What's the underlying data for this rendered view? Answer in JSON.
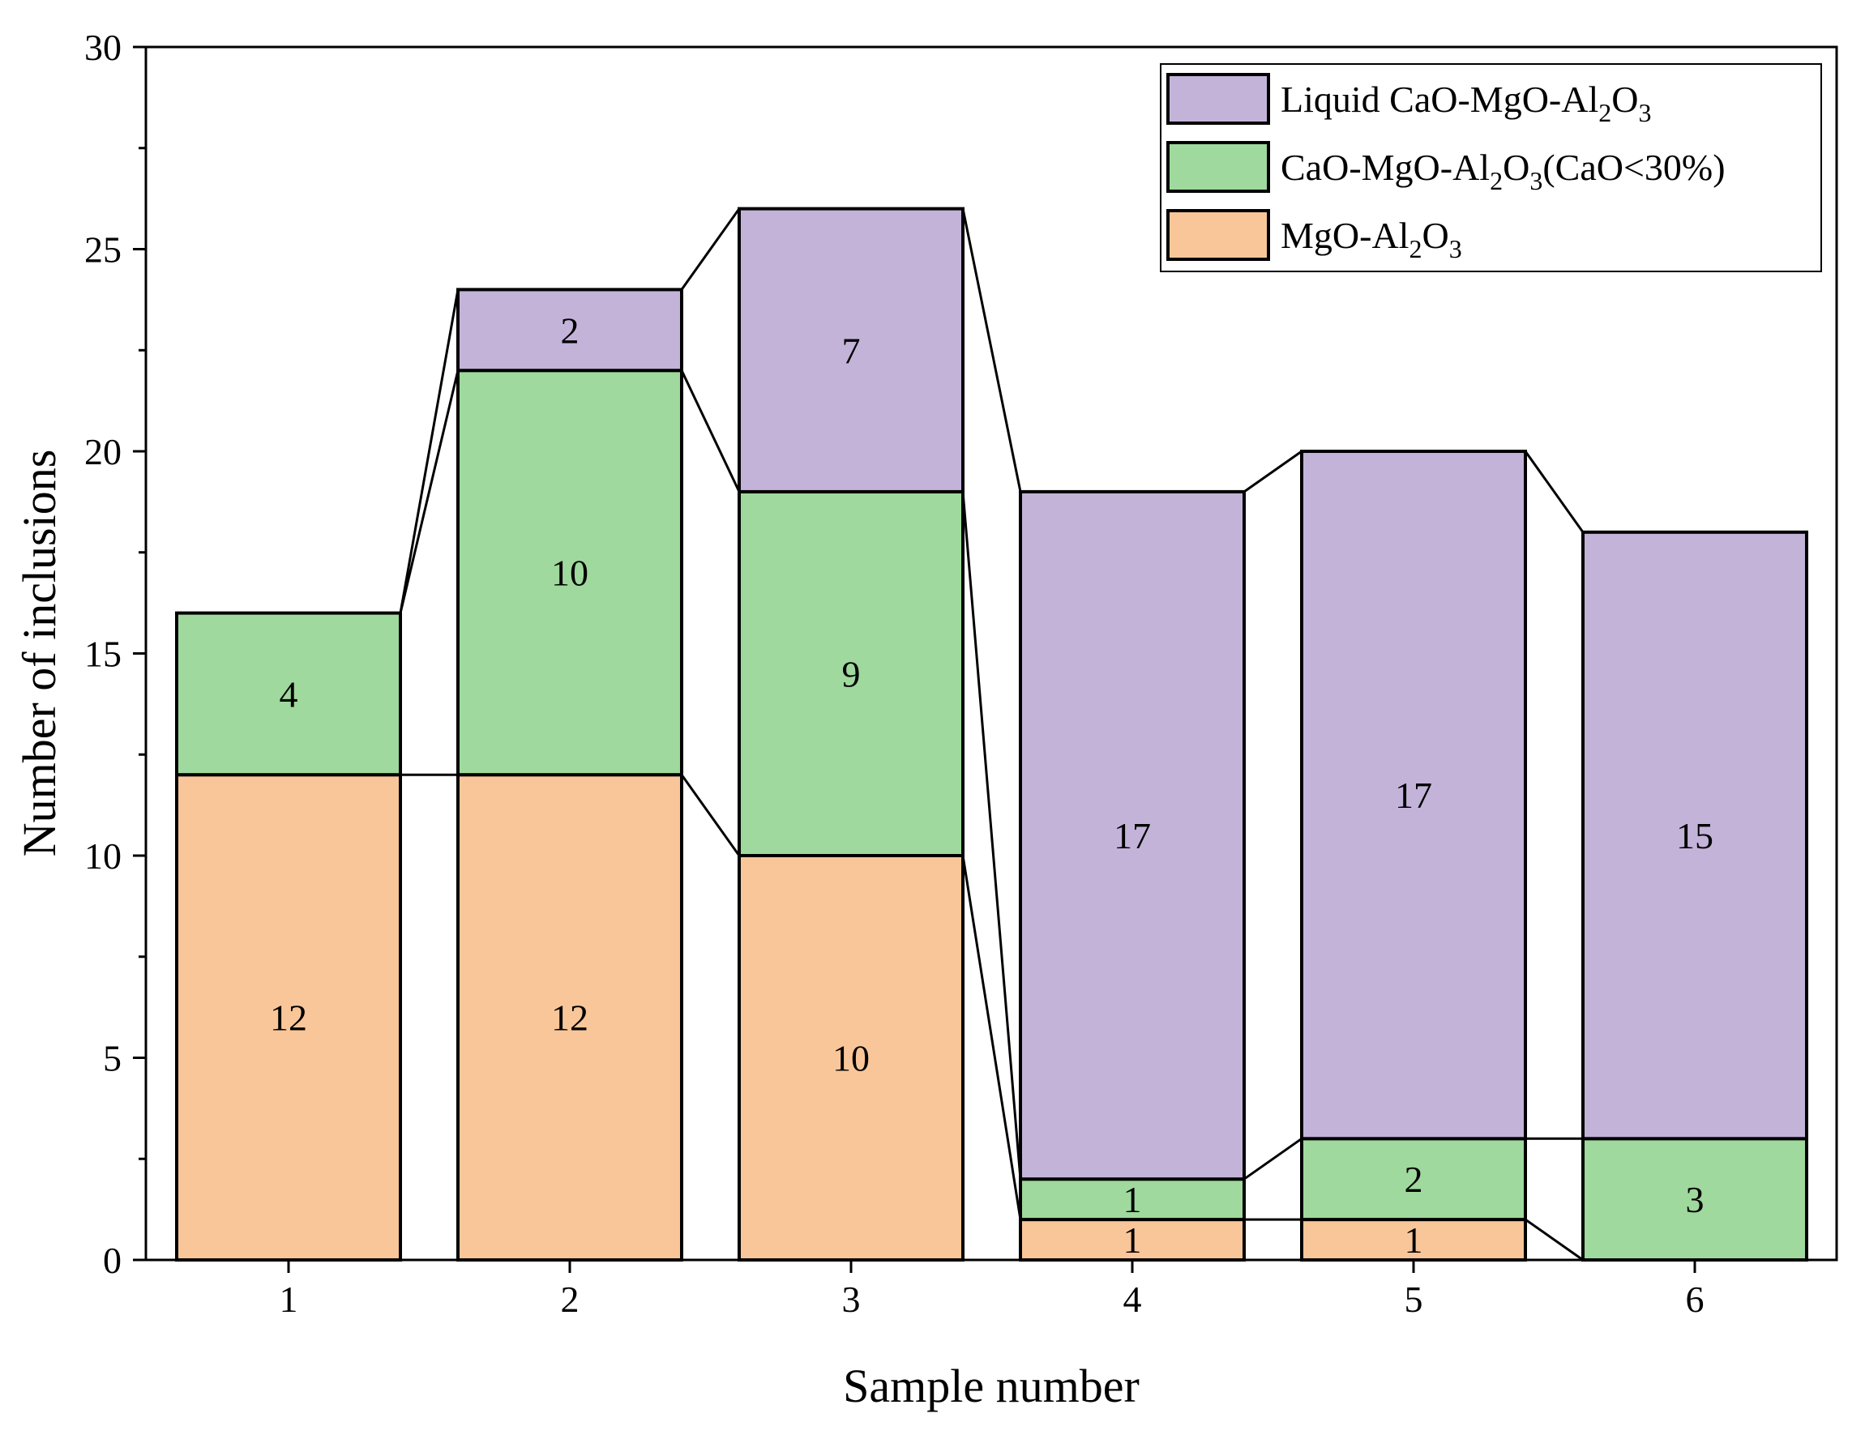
{
  "chart_data": {
    "type": "bar",
    "stacked": true,
    "connect_lines": true,
    "categories": [
      "1",
      "2",
      "3",
      "4",
      "5",
      "6"
    ],
    "series": [
      {
        "name": "MgO-Al2O3",
        "legend_main": "MgO-Al",
        "legend_parts": [
          [
            "MgO-Al",
            ""
          ],
          [
            "2",
            "sub"
          ],
          [
            "O",
            ""
          ],
          [
            "3",
            "sub"
          ]
        ],
        "color": "#F9C699",
        "values": [
          12,
          12,
          10,
          1,
          1,
          0
        ]
      },
      {
        "name": "CaO-MgO-Al2O3(CaO<30%)",
        "legend_parts": [
          [
            "CaO-MgO-Al",
            ""
          ],
          [
            "2",
            "sub"
          ],
          [
            "O",
            ""
          ],
          [
            "3",
            "sub"
          ],
          [
            "(CaO<30%)",
            ""
          ]
        ],
        "color": "#9FD99D",
        "values": [
          4,
          10,
          9,
          1,
          2,
          3
        ]
      },
      {
        "name": "Liquid CaO-MgO-Al2O3",
        "legend_parts": [
          [
            "Liquid CaO-MgO-Al",
            ""
          ],
          [
            "2",
            "sub"
          ],
          [
            "O",
            ""
          ],
          [
            "3",
            "sub"
          ]
        ],
        "color": "#C3B3D9",
        "values": [
          0,
          2,
          7,
          17,
          17,
          15
        ]
      }
    ],
    "legend_order": [
      2,
      1,
      0
    ],
    "xlabel": "Sample number",
    "ylabel": "Number of inclusions",
    "ylim": [
      0,
      30
    ],
    "yticks": [
      0,
      5,
      10,
      15,
      20,
      25,
      30
    ],
    "legend_position": "top-right"
  }
}
